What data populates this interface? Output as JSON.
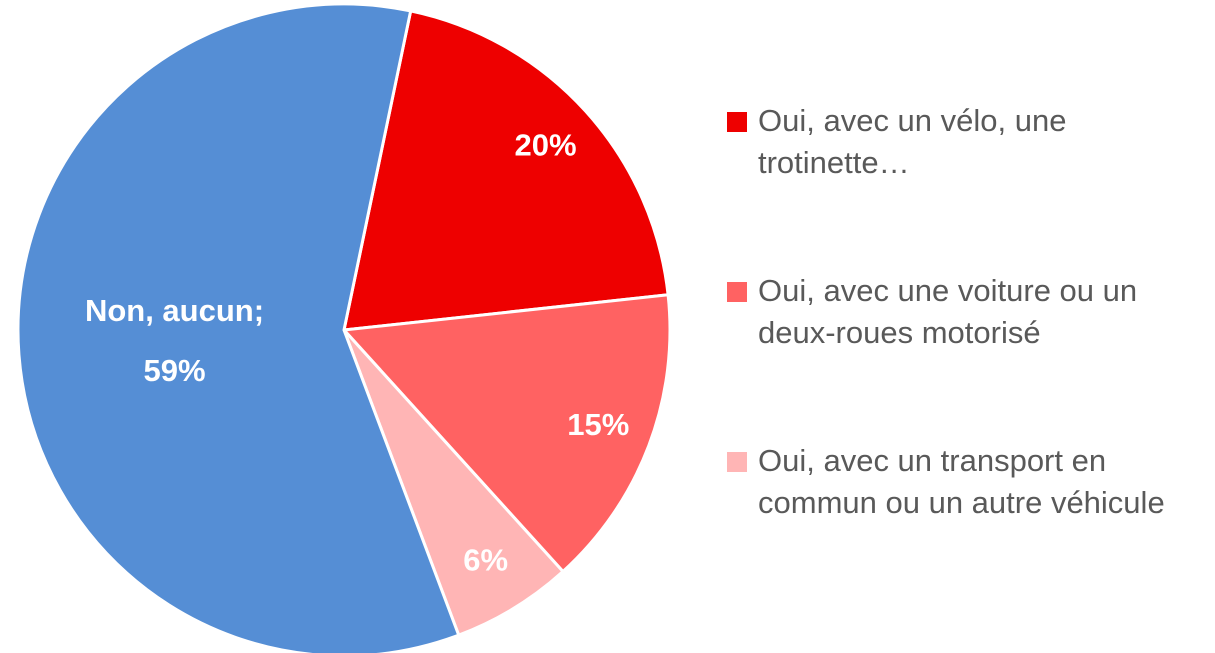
{
  "chart_data": {
    "type": "pie",
    "categories": [
      "Oui, avec un vélo, une trotinette…",
      "Oui, avec une voiture ou un deux-roues motorisé",
      "Oui, avec un transport en commun ou  un autre véhicule",
      "Non, aucun;"
    ],
    "values": [
      20,
      15,
      6,
      59
    ],
    "value_labels": [
      "20%",
      "15%",
      "6%",
      "59%"
    ],
    "colors": [
      "#ee0000",
      "#ff6262",
      "#ffb5b5",
      "#558ed5"
    ],
    "name_in_label": [
      false,
      false,
      false,
      true
    ],
    "legend": "right"
  }
}
